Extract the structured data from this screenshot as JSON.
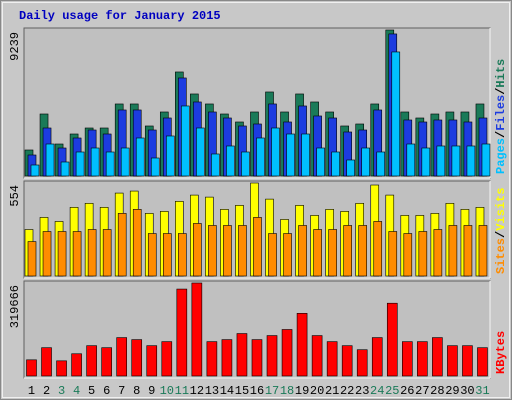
{
  "title": "Daily usage for January 2015",
  "legend_separator": "/",
  "chart_data": [
    {
      "type": "bar",
      "ylim": [
        0,
        9239
      ],
      "yticks": [
        9239
      ],
      "series": [
        {
          "name": "Pages",
          "color": "#00c0ff",
          "values": [
            696,
            2025,
            886,
            1519,
            1772,
            1519,
            1772,
            2405,
            1139,
            2532,
            4431,
            3038,
            1393,
            1899,
            1519,
            2405,
            3038,
            2658,
            2658,
            1772,
            1519,
            1013,
            1772,
            1519,
            7849,
            2025,
            1772,
            1899,
            1899,
            1899,
            2025
          ]
        },
        {
          "name": "Files",
          "color": "#1c3ce0",
          "values": [
            1329,
            3038,
            1772,
            2405,
            2911,
            2658,
            4178,
            4178,
            2911,
            3671,
            6203,
            4684,
            4051,
            3671,
            3165,
            3291,
            4558,
            3418,
            4431,
            3798,
            3671,
            2785,
            2911,
            4178,
            8989,
            3545,
            3418,
            3545,
            3545,
            3418,
            3671
          ]
        },
        {
          "name": "Hits",
          "color": "#1a7a58",
          "values": [
            1646,
            3924,
            2025,
            2658,
            3038,
            3038,
            4558,
            4558,
            3165,
            4051,
            6583,
            5191,
            4558,
            3924,
            3418,
            4051,
            5317,
            4051,
            5191,
            4684,
            4051,
            3165,
            3291,
            4558,
            9239,
            4051,
            3671,
            3924,
            4051,
            4051,
            4558
          ]
        }
      ]
    },
    {
      "type": "bar",
      "ylim": [
        0,
        554
      ],
      "yticks": [
        554
      ],
      "series": [
        {
          "name": "Sites",
          "color": "#ff8c00",
          "values": [
            205,
            265,
            265,
            265,
            277,
            277,
            373,
            397,
            253,
            253,
            253,
            313,
            301,
            301,
            301,
            349,
            253,
            253,
            301,
            277,
            277,
            301,
            301,
            325,
            265,
            253,
            265,
            277,
            301,
            301,
            301
          ]
        },
        {
          "name": "Visits",
          "color": "#ffff00",
          "values": [
            277,
            349,
            325,
            409,
            433,
            409,
            494,
            506,
            373,
            385,
            445,
            482,
            470,
            397,
            421,
            554,
            458,
            337,
            421,
            361,
            397,
            385,
            433,
            542,
            482,
            361,
            361,
            373,
            433,
            397,
            409
          ]
        }
      ]
    },
    {
      "type": "bar",
      "ylim": [
        0,
        319666
      ],
      "yticks": [
        319666
      ],
      "categories": [
        "1",
        "2",
        "3",
        "4",
        "5",
        "6",
        "7",
        "8",
        "9",
        "10",
        "11",
        "12",
        "13",
        "14",
        "15",
        "16",
        "17",
        "18",
        "19",
        "20",
        "21",
        "22",
        "23",
        "24",
        "25",
        "26",
        "27",
        "28",
        "29",
        "30",
        "31"
      ],
      "category_colors": [
        "#000000",
        "#000000",
        "#1a7a58",
        "#1a7a58",
        "#000000",
        "#000000",
        "#000000",
        "#000000",
        "#000000",
        "#1a7a58",
        "#1a7a58",
        "#000000",
        "#000000",
        "#000000",
        "#000000",
        "#000000",
        "#1a7a58",
        "#1a7a58",
        "#000000",
        "#000000",
        "#000000",
        "#000000",
        "#000000",
        "#1a7a58",
        "#1a7a58",
        "#000000",
        "#000000",
        "#000000",
        "#000000",
        "#000000",
        "#1a7a58"
      ],
      "series": [
        {
          "name": "KBytes",
          "color": "#ff0000",
          "values": [
            55594,
            97289,
            52119,
            76441,
            104238,
            97289,
            132035,
            125086,
            104238,
            118136,
            298816,
            319666,
            118136,
            125086,
            145933,
            125086,
            138984,
            159832,
            215425,
            138984,
            118136,
            104238,
            90340,
            132035,
            250171,
            118136,
            118136,
            132035,
            104238,
            104238,
            97289
          ]
        }
      ]
    }
  ]
}
